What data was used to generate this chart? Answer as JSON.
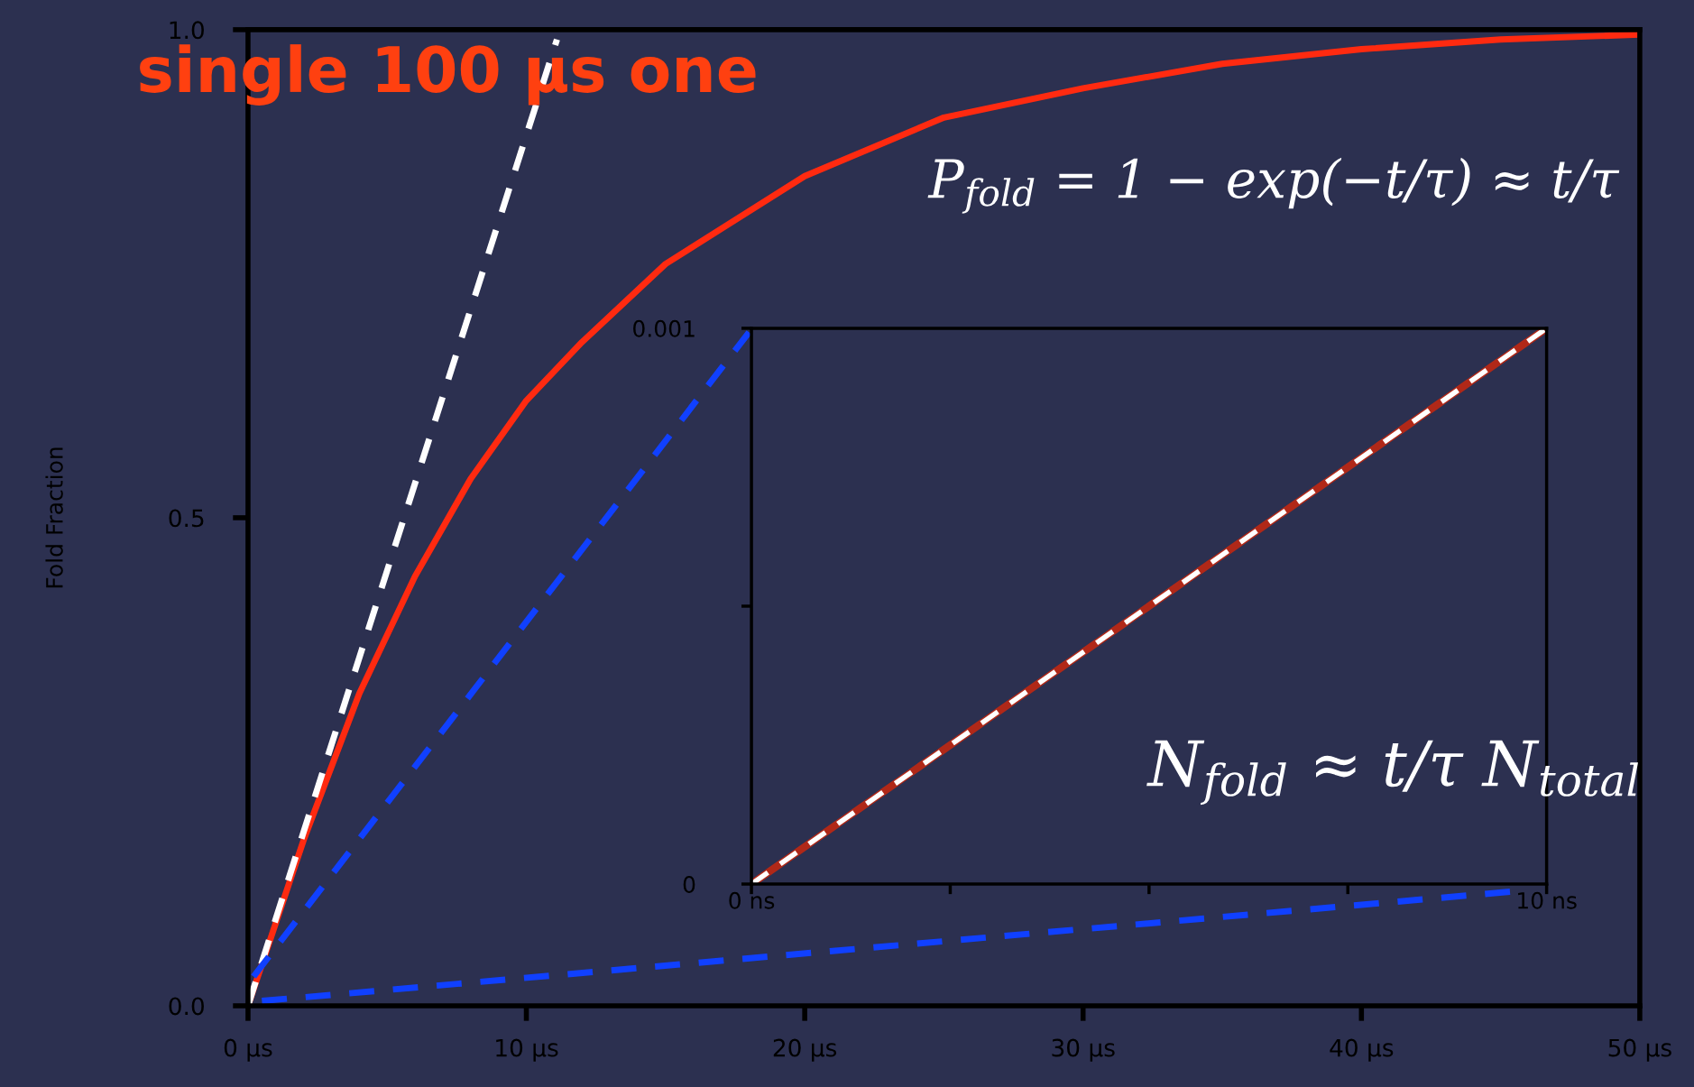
{
  "chart_data": [
    {
      "type": "line",
      "title": "single 100 µs one",
      "ylabel": "Fold Fraction",
      "xlim": [
        0,
        50
      ],
      "xticks": [
        {
          "value": 0,
          "label": "0 µs"
        },
        {
          "value": 10,
          "label": "10 µs"
        },
        {
          "value": 20,
          "label": "20 µs"
        },
        {
          "value": 30,
          "label": "30 µs"
        },
        {
          "value": 40,
          "label": "40 µs"
        },
        {
          "value": 50,
          "label": "50 µs"
        }
      ],
      "ylim": [
        0,
        1
      ],
      "yticks": [
        {
          "value": 0,
          "label": "0.0"
        },
        {
          "value": 0.5,
          "label": "0.5"
        },
        {
          "value": 1,
          "label": "1.0"
        }
      ],
      "grid": false,
      "legend": false,
      "series": [
        {
          "color": "#ff2a10",
          "line_style": "solid",
          "x": [
            0,
            2,
            4,
            6,
            8,
            10,
            12,
            15,
            20,
            25,
            30,
            35,
            40,
            45,
            50
          ],
          "values": [
            0,
            0.17,
            0.32,
            0.44,
            0.54,
            0.62,
            0.68,
            0.76,
            0.85,
            0.91,
            0.94,
            0.965,
            0.98,
            0.99,
            0.995
          ]
        },
        {
          "color": "#ffffff",
          "line_style": "dashed",
          "x": [
            0,
            11.1
          ],
          "values": [
            0,
            0.99
          ]
        },
        {
          "color": "#1040ff",
          "line_style": "dashed",
          "x": [
            0.2,
            18
          ],
          "values": [
            0.03,
            0.69
          ]
        },
        {
          "color": "#1040ff",
          "line_style": "dashed",
          "x": [
            0.5,
            45.4
          ],
          "values": [
            0.005,
            0.117
          ]
        }
      ],
      "annotations": [
        "P$_{fold}$ = 1 − exp(−t/τ) ≈ t/τ"
      ]
    },
    {
      "type": "line",
      "xlim": [
        0,
        10
      ],
      "xticks": [
        {
          "value": 0,
          "label": "0 ns"
        },
        {
          "value": 2.5,
          "label": null
        },
        {
          "value": 5,
          "label": null
        },
        {
          "value": 7.5,
          "label": null
        },
        {
          "value": 10,
          "label": "10 ns"
        }
      ],
      "ylim": [
        0,
        0.001
      ],
      "yticks": [
        {
          "value": 0,
          "label": "0"
        },
        {
          "value": 0.0005,
          "label": null
        },
        {
          "value": 0.001,
          "label": "0.001"
        }
      ],
      "grid": false,
      "legend": false,
      "series": [
        {
          "color": "#b02818",
          "line_style": "solid",
          "x": [
            0,
            10
          ],
          "values": [
            0,
            0.001
          ]
        },
        {
          "color": "#ffffff",
          "line_style": "dashed",
          "x": [
            0,
            10
          ],
          "values": [
            0,
            0.001
          ]
        }
      ],
      "annotations": [
        "N$_{fold}$ ≈ t/τ N$_{total}$"
      ]
    }
  ]
}
